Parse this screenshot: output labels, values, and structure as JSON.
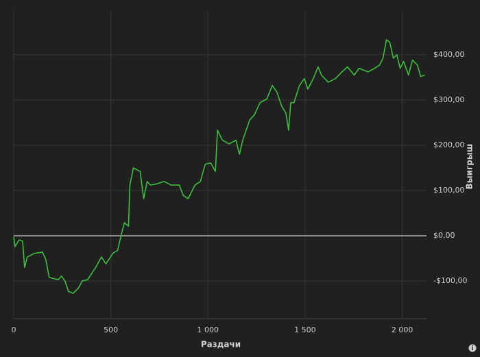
{
  "chart_data": {
    "type": "line",
    "x_label": "Раздачи",
    "y_label": "Выигрыш",
    "x": [
      0,
      7,
      28,
      46,
      56,
      70,
      106,
      148,
      165,
      183,
      229,
      246,
      264,
      282,
      306,
      334,
      352,
      380,
      422,
      451,
      475,
      510,
      535,
      556,
      570,
      591,
      598,
      616,
      651,
      669,
      687,
      704,
      739,
      774,
      810,
      852,
      873,
      898,
      933,
      961,
      986,
      1014,
      1038,
      1049,
      1074,
      1109,
      1144,
      1162,
      1179,
      1215,
      1239,
      1268,
      1303,
      1331,
      1355,
      1380,
      1401,
      1415,
      1426,
      1443,
      1471,
      1496,
      1514,
      1542,
      1567,
      1584,
      1619,
      1655,
      1690,
      1718,
      1753,
      1778,
      1824,
      1859,
      1883,
      1901,
      1919,
      1936,
      1954,
      1972,
      1989,
      2007,
      2032,
      2053,
      2078,
      2095,
      2116
    ],
    "series": [
      {
        "color": "#3cbf3c",
        "values": [
          -2,
          -24,
          -9,
          -12,
          -70,
          -47,
          -39,
          -36,
          -52,
          -92,
          -97,
          -89,
          -100,
          -123,
          -127,
          -115,
          -100,
          -97,
          -70,
          -47,
          -62,
          -39,
          -32,
          6,
          29,
          21,
          112,
          150,
          142,
          82,
          120,
          112,
          115,
          120,
          112,
          112,
          89,
          82,
          112,
          120,
          158,
          161,
          142,
          233,
          211,
          203,
          211,
          180,
          211,
          256,
          267,
          294,
          302,
          332,
          317,
          286,
          271,
          233,
          294,
          294,
          332,
          347,
          324,
          347,
          373,
          355,
          339,
          347,
          362,
          373,
          355,
          370,
          362,
          370,
          377,
          392,
          433,
          427,
          392,
          400,
          370,
          385,
          355,
          388,
          377,
          352,
          355
        ]
      }
    ],
    "xlim": [
      0,
      2125
    ],
    "ylim": [
      -183,
      498
    ],
    "xticks": [
      0,
      500,
      {
        "value": 1000,
        "label": "1 000"
      },
      {
        "value": 1500,
        "label": "1 500"
      },
      {
        "value": 2000,
        "label": "2 000"
      }
    ],
    "yticks": [
      {
        "value": -100,
        "label": "-$100,00"
      },
      {
        "value": 0,
        "label": "$0,00"
      },
      {
        "value": 100,
        "label": "$100,00"
      },
      {
        "value": 200,
        "label": "$200,00"
      },
      {
        "value": 300,
        "label": "$300,00"
      },
      {
        "value": 400,
        "label": "$400,00"
      }
    ],
    "grid": true
  }
}
